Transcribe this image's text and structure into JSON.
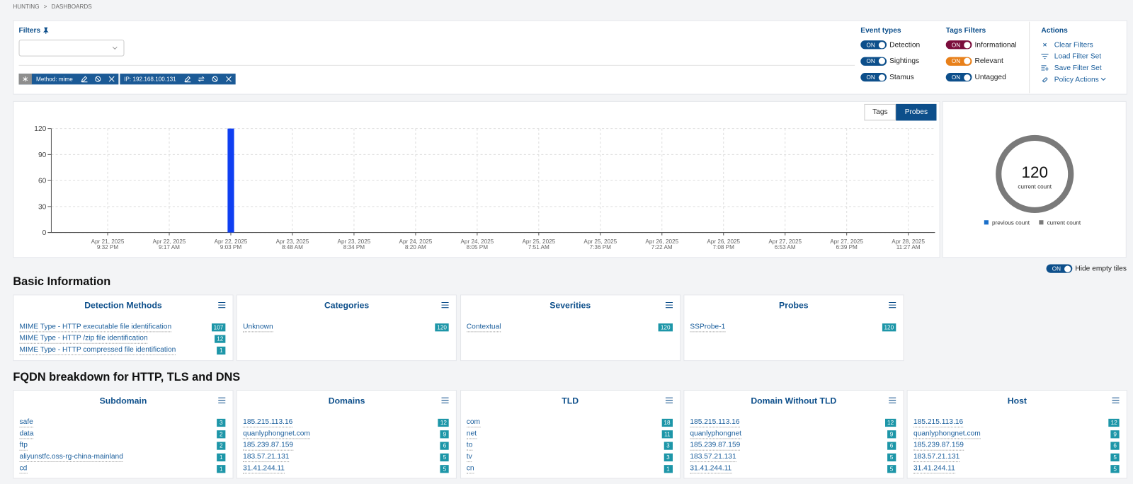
{
  "breadcrumb": {
    "items": [
      "HUNTING",
      "DASHBOARDS"
    ],
    "separator": ">"
  },
  "filters": {
    "title": "Filters",
    "chips": [
      "Method: mime",
      "IP: 192.168.100.131"
    ]
  },
  "event_types": {
    "title": "Event types",
    "color": "#0d4f8b",
    "items": [
      {
        "state": "ON",
        "label": "Detection"
      },
      {
        "state": "ON",
        "label": "Sightings"
      },
      {
        "state": "ON",
        "label": "Stamus"
      }
    ]
  },
  "tags_filters": {
    "title": "Tags Filters",
    "items": [
      {
        "state": "ON",
        "label": "Informational",
        "color": "#7b0d3c"
      },
      {
        "state": "ON",
        "label": "Relevant",
        "color": "#e8801a"
      },
      {
        "state": "ON",
        "label": "Untagged",
        "color": "#0d4f8b"
      }
    ]
  },
  "actions": {
    "title": "Actions",
    "items": [
      "Clear Filters",
      "Load Filter Set",
      "Save Filter Set",
      "Policy Actions"
    ]
  },
  "chart_toggle": {
    "items": [
      "Tags",
      "Probes"
    ],
    "active": 1
  },
  "chart_data": [
    {
      "type": "bar",
      "categories": [
        [
          "Apr 21, 2025",
          "9:32 PM"
        ],
        [
          "Apr 22, 2025",
          "9:17 AM"
        ],
        [
          "Apr 22, 2025",
          "9:03 PM"
        ],
        [
          "Apr 23, 2025",
          "8:48 AM"
        ],
        [
          "Apr 23, 2025",
          "8:34 PM"
        ],
        [
          "Apr 24, 2025",
          "8:20 AM"
        ],
        [
          "Apr 24, 2025",
          "8:05 PM"
        ],
        [
          "Apr 25, 2025",
          "7:51 AM"
        ],
        [
          "Apr 25, 2025",
          "7:36 PM"
        ],
        [
          "Apr 26, 2025",
          "7:22 AM"
        ],
        [
          "Apr 26, 2025",
          "7:08 PM"
        ],
        [
          "Apr 27, 2025",
          "6:53 AM"
        ],
        [
          "Apr 27, 2025",
          "6:39 PM"
        ],
        [
          "Apr 28, 2025",
          "11:27 AM"
        ]
      ],
      "values": [
        0,
        0,
        120,
        0,
        0,
        0,
        0,
        0,
        0,
        0,
        0,
        0,
        0,
        0
      ],
      "color": "#0f3ff2",
      "ylim": [
        0,
        120
      ],
      "yticks": [
        0,
        30,
        60,
        90,
        120
      ],
      "grid": true
    },
    {
      "type": "donut",
      "center_label": "current count",
      "series": [
        {
          "name": "previous count",
          "color": "#1a6fc9",
          "values": [
            0
          ]
        },
        {
          "name": "current count",
          "color": "#7a7a7a",
          "values": [
            120
          ]
        }
      ]
    }
  ],
  "hide_empty_tiles": {
    "state": "ON",
    "label": "Hide empty tiles"
  },
  "sections": [
    {
      "title": "Basic Information",
      "tiles": [
        {
          "title": "Detection Methods",
          "rows": [
            {
              "label": "MIME Type - HTTP executable file identification",
              "count": 107
            },
            {
              "label": "MIME Type - HTTP /zip file identification",
              "count": 12
            },
            {
              "label": "MIME Type - HTTP compressed file identification",
              "count": 1
            }
          ]
        },
        {
          "title": "Categories",
          "rows": [
            {
              "label": "Unknown",
              "count": 120
            }
          ]
        },
        {
          "title": "Severities",
          "rows": [
            {
              "label": "Contextual",
              "count": 120
            }
          ]
        },
        {
          "title": "Probes",
          "rows": [
            {
              "label": "SSProbe-1",
              "count": 120
            }
          ]
        }
      ]
    },
    {
      "title": "FQDN breakdown for HTTP, TLS and DNS",
      "tiles": [
        {
          "title": "Subdomain",
          "rows": [
            {
              "label": "safe",
              "count": 3
            },
            {
              "label": "data",
              "count": 2
            },
            {
              "label": "ftp",
              "count": 2
            },
            {
              "label": "aliyunstfc.oss-rg-china-mainland",
              "count": 1
            },
            {
              "label": "cd",
              "count": 1
            }
          ]
        },
        {
          "title": "Domains",
          "rows": [
            {
              "label": "185.215.113.16",
              "count": 12
            },
            {
              "label": "quanlyphongnet.com",
              "count": 9
            },
            {
              "label": "185.239.87.159",
              "count": 6
            },
            {
              "label": "183.57.21.131",
              "count": 5
            },
            {
              "label": "31.41.244.11",
              "count": 5
            }
          ]
        },
        {
          "title": "TLD",
          "rows": [
            {
              "label": "com",
              "count": 18
            },
            {
              "label": "net",
              "count": 11
            },
            {
              "label": "to",
              "count": 3
            },
            {
              "label": "tv",
              "count": 3
            },
            {
              "label": "cn",
              "count": 1
            }
          ]
        },
        {
          "title": "Domain Without TLD",
          "rows": [
            {
              "label": "185.215.113.16",
              "count": 12
            },
            {
              "label": "quanlyphongnet",
              "count": 9
            },
            {
              "label": "185.239.87.159",
              "count": 6
            },
            {
              "label": "183.57.21.131",
              "count": 5
            },
            {
              "label": "31.41.244.11",
              "count": 5
            }
          ]
        },
        {
          "title": "Host",
          "rows": [
            {
              "label": "185.215.113.16",
              "count": 12
            },
            {
              "label": "quanlyphongnet.com",
              "count": 9
            },
            {
              "label": "185.239.87.159",
              "count": 6
            },
            {
              "label": "183.57.21.131",
              "count": 5
            },
            {
              "label": "31.41.244.11",
              "count": 5
            }
          ]
        }
      ]
    }
  ]
}
